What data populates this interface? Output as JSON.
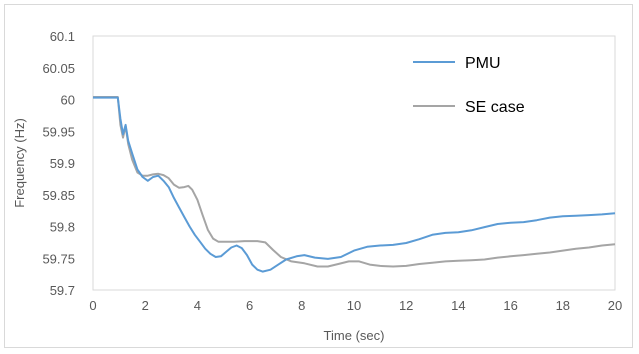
{
  "chart_data": {
    "type": "line",
    "title": "",
    "xlabel": "Time (sec)",
    "ylabel": "Frequency (Hz)",
    "xlim": [
      0,
      20
    ],
    "ylim": [
      59.7,
      60.1
    ],
    "xticks": [
      "0",
      "2",
      "4",
      "6",
      "8",
      "10",
      "12",
      "14",
      "16",
      "18",
      "20"
    ],
    "yticks": [
      "59.7",
      "59.75",
      "59.8",
      "59.85",
      "59.9",
      "59.95",
      "60",
      "60.05",
      "60.1"
    ],
    "grid": false,
    "legend_position": "top-right",
    "series": [
      {
        "name": "PMU",
        "color": "#5b9bd5",
        "points": [
          [
            0,
            60.003
          ],
          [
            0.5,
            60.003
          ],
          [
            0.95,
            60.003
          ],
          [
            1.05,
            59.97
          ],
          [
            1.15,
            59.945
          ],
          [
            1.25,
            59.96
          ],
          [
            1.35,
            59.935
          ],
          [
            1.5,
            59.915
          ],
          [
            1.7,
            59.89
          ],
          [
            1.9,
            59.878
          ],
          [
            2.1,
            59.872
          ],
          [
            2.3,
            59.878
          ],
          [
            2.5,
            59.88
          ],
          [
            2.7,
            59.872
          ],
          [
            2.9,
            59.862
          ],
          [
            3.1,
            59.845
          ],
          [
            3.3,
            59.83
          ],
          [
            3.5,
            59.815
          ],
          [
            3.7,
            59.8
          ],
          [
            3.9,
            59.787
          ],
          [
            4.1,
            59.776
          ],
          [
            4.3,
            59.765
          ],
          [
            4.5,
            59.757
          ],
          [
            4.7,
            59.752
          ],
          [
            4.9,
            59.753
          ],
          [
            5.1,
            59.76
          ],
          [
            5.3,
            59.767
          ],
          [
            5.5,
            59.77
          ],
          [
            5.7,
            59.766
          ],
          [
            5.9,
            59.755
          ],
          [
            6.1,
            59.74
          ],
          [
            6.3,
            59.732
          ],
          [
            6.5,
            59.729
          ],
          [
            6.8,
            59.732
          ],
          [
            7.1,
            59.74
          ],
          [
            7.4,
            59.748
          ],
          [
            7.8,
            59.753
          ],
          [
            8.1,
            59.755
          ],
          [
            8.5,
            59.751
          ],
          [
            9.0,
            59.749
          ],
          [
            9.5,
            59.752
          ],
          [
            10.0,
            59.762
          ],
          [
            10.5,
            59.768
          ],
          [
            11.0,
            59.77
          ],
          [
            11.5,
            59.771
          ],
          [
            12.0,
            59.774
          ],
          [
            12.5,
            59.78
          ],
          [
            13.0,
            59.787
          ],
          [
            13.5,
            59.79
          ],
          [
            14.0,
            59.791
          ],
          [
            14.5,
            59.794
          ],
          [
            15.0,
            59.799
          ],
          [
            15.5,
            59.804
          ],
          [
            16.0,
            59.806
          ],
          [
            16.5,
            59.807
          ],
          [
            17.0,
            59.81
          ],
          [
            17.5,
            59.814
          ],
          [
            18.0,
            59.816
          ],
          [
            18.5,
            59.817
          ],
          [
            19.0,
            59.818
          ],
          [
            19.5,
            59.819
          ],
          [
            20.0,
            59.821
          ]
        ]
      },
      {
        "name": "SE case",
        "color": "#a5a5a5",
        "points": [
          [
            0,
            60.004
          ],
          [
            0.5,
            60.004
          ],
          [
            0.95,
            60.004
          ],
          [
            1.05,
            59.96
          ],
          [
            1.15,
            59.94
          ],
          [
            1.25,
            59.958
          ],
          [
            1.35,
            59.93
          ],
          [
            1.5,
            59.905
          ],
          [
            1.7,
            59.885
          ],
          [
            1.9,
            59.88
          ],
          [
            2.1,
            59.88
          ],
          [
            2.3,
            59.882
          ],
          [
            2.5,
            59.883
          ],
          [
            2.7,
            59.881
          ],
          [
            2.9,
            59.876
          ],
          [
            3.1,
            59.866
          ],
          [
            3.3,
            59.861
          ],
          [
            3.5,
            59.862
          ],
          [
            3.65,
            59.864
          ],
          [
            3.8,
            59.858
          ],
          [
            4.0,
            59.842
          ],
          [
            4.2,
            59.818
          ],
          [
            4.4,
            59.795
          ],
          [
            4.6,
            59.781
          ],
          [
            4.8,
            59.776
          ],
          [
            5.0,
            59.776
          ],
          [
            5.4,
            59.776
          ],
          [
            5.8,
            59.777
          ],
          [
            6.3,
            59.777
          ],
          [
            6.6,
            59.775
          ],
          [
            6.9,
            59.763
          ],
          [
            7.2,
            59.752
          ],
          [
            7.6,
            59.745
          ],
          [
            8.1,
            59.742
          ],
          [
            8.6,
            59.737
          ],
          [
            9.0,
            59.737
          ],
          [
            9.4,
            59.741
          ],
          [
            9.8,
            59.745
          ],
          [
            10.2,
            59.745
          ],
          [
            10.6,
            59.74
          ],
          [
            11.0,
            59.738
          ],
          [
            11.5,
            59.737
          ],
          [
            12.0,
            59.738
          ],
          [
            12.5,
            59.741
          ],
          [
            13.0,
            59.743
          ],
          [
            13.5,
            59.745
          ],
          [
            14.0,
            59.746
          ],
          [
            14.5,
            59.747
          ],
          [
            15.0,
            59.748
          ],
          [
            15.5,
            59.751
          ],
          [
            16.0,
            59.753
          ],
          [
            16.5,
            59.755
          ],
          [
            17.0,
            59.757
          ],
          [
            17.5,
            59.759
          ],
          [
            18.0,
            59.762
          ],
          [
            18.5,
            59.765
          ],
          [
            19.0,
            59.767
          ],
          [
            19.5,
            59.77
          ],
          [
            20.0,
            59.772
          ]
        ]
      }
    ]
  }
}
